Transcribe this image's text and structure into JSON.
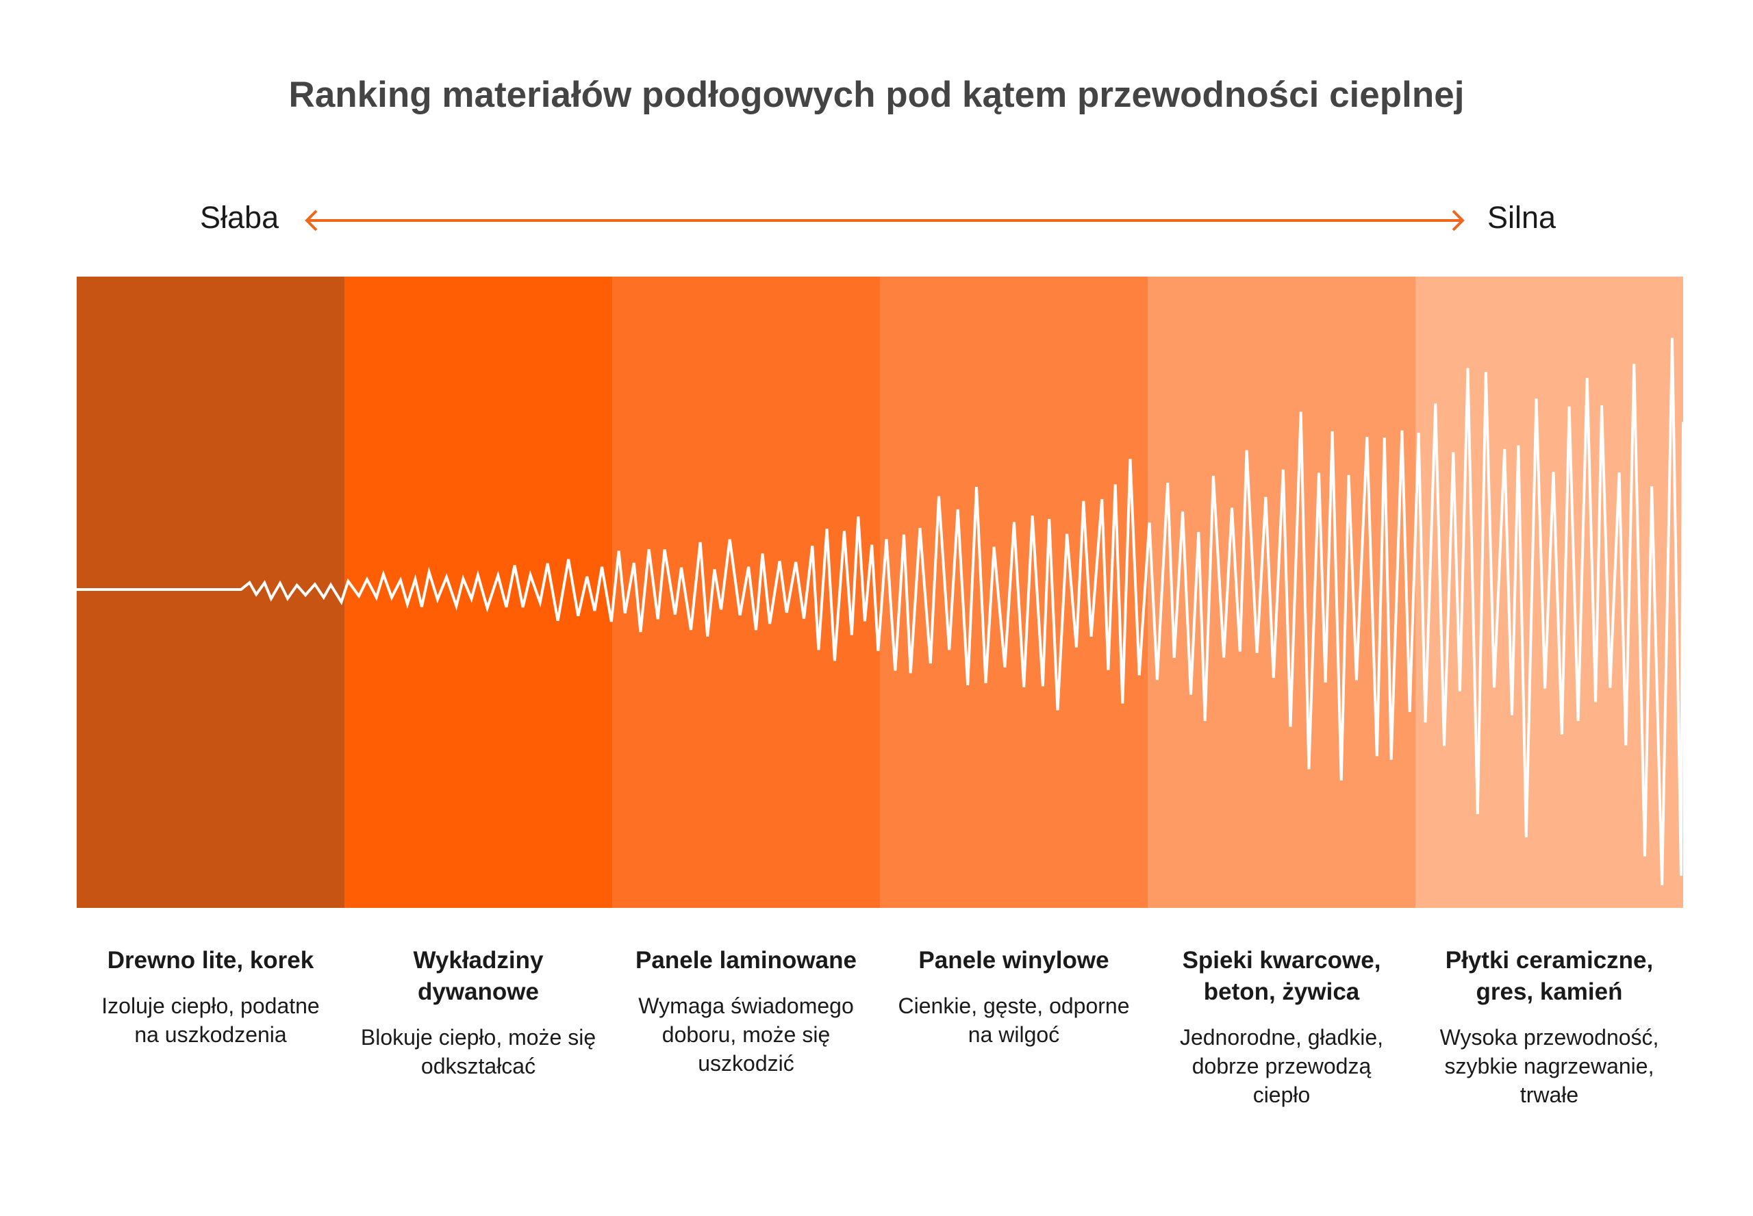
{
  "title": "Ranking materiałów podłogowych pod kątem przewodności cieplnej",
  "scale": {
    "left_label": "Słaba",
    "right_label": "Silna",
    "arrow_color": "#f0661a"
  },
  "categories": [
    {
      "title": "Drewno lite, korek",
      "description": "Izoluje ciepło, podatne na uszkodzenia",
      "color": "#c85414",
      "wave_amplitude": "flat-to-small"
    },
    {
      "title": "Wykładziny dywanowe",
      "description": "Blokuje ciepło, może się odkształcać",
      "color": "#ff5e04",
      "wave_amplitude": "small"
    },
    {
      "title": "Panele laminowane",
      "description": "Wymaga świadomego doboru, może się uszkodzić",
      "color": "#fe7124",
      "wave_amplitude": "medium"
    },
    {
      "title": "Panele winylowe",
      "description": "Cienkie, gęste, odporne na wilgoć",
      "color": "#fe823e",
      "wave_amplitude": "medium-large"
    },
    {
      "title": "Spieki kwarcowe, beton, żywica",
      "description": "Jednorodne, gładkie, dobrze przewodzą ciepło",
      "color": "#fe9a64",
      "wave_amplitude": "large"
    },
    {
      "title": "Płytki ceramiczne, gres, kamień",
      "description": "Wysoka przewodność, szybkie nagrzewanie, trwałe",
      "color": "#feb389",
      "wave_amplitude": "very-large"
    }
  ],
  "wave_color": "#ffffff"
}
